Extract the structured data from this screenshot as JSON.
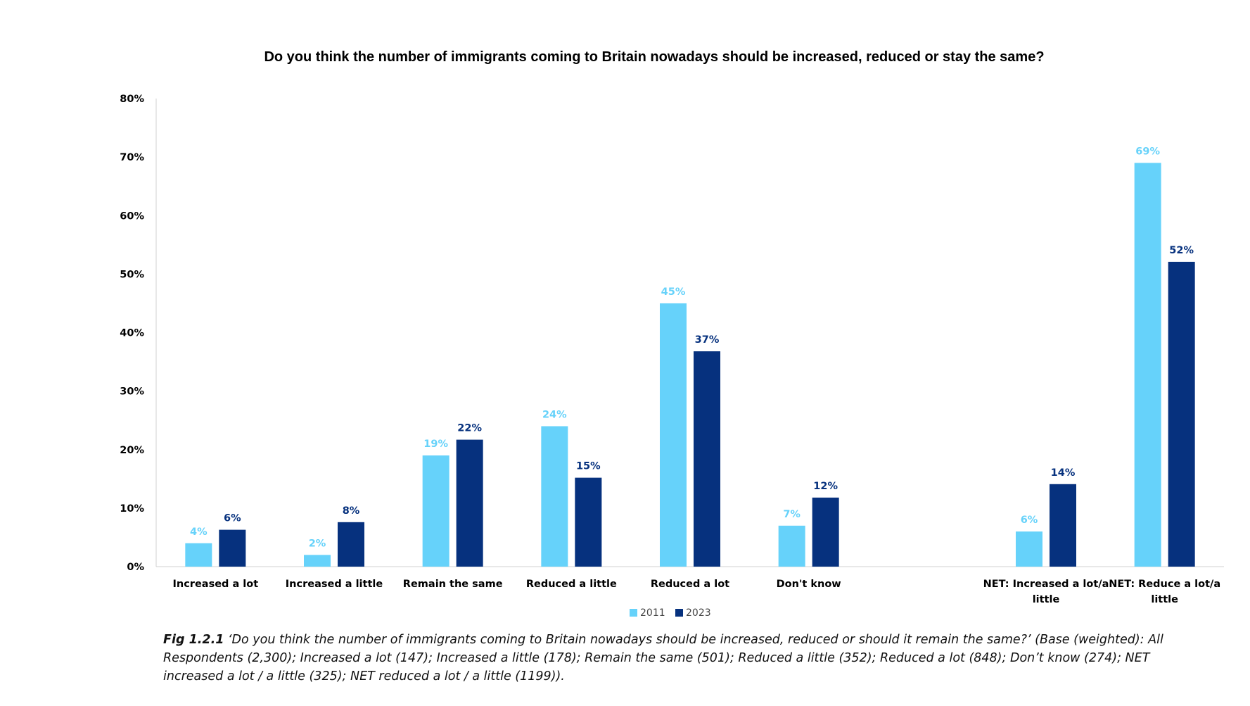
{
  "chart_data": {
    "type": "bar",
    "title": "Do you think the number of immigrants coming to Britain nowadays should be increased, reduced or stay the same?",
    "categories": [
      "Increased a lot",
      "Increased a little",
      "Remain the same",
      "Reduced a little",
      "Reduced a lot",
      "Don't know",
      "",
      "NET: Increased a lot/a little",
      "NET: Reduce a lot/a little"
    ],
    "series": [
      {
        "name": "2011",
        "color": "#66D2FA",
        "values": [
          4,
          2,
          19,
          24,
          45,
          7,
          null,
          6,
          69
        ],
        "labels": [
          "4%",
          "2%",
          "19%",
          "24%",
          "45%",
          "7%",
          "",
          "6%",
          "69%"
        ]
      },
      {
        "name": "2023",
        "color": "#06317E",
        "values": [
          6.3,
          7.6,
          21.7,
          15.2,
          36.8,
          11.8,
          null,
          14.1,
          52.1
        ],
        "labels": [
          "6%",
          "8%",
          "22%",
          "15%",
          "37%",
          "12%",
          "",
          "14%",
          "52%"
        ]
      }
    ],
    "ylim": [
      0,
      80
    ],
    "yticks": [
      "0%",
      "10%",
      "20%",
      "30%",
      "40%",
      "50%",
      "60%",
      "70%",
      "80%"
    ],
    "grid": false,
    "legend": "bottom-center"
  },
  "caption": {
    "fig_label": "Fig 1.2.1",
    "text": " ‘Do you think the number of immigrants coming to Britain nowadays should be increased, reduced or should it remain the same?’ (Base (weighted): All Respondents (2,300); Increased a lot (147); Increased a little (178); Remain the same (501); Reduced a little (352); Reduced a lot (848); Don’t know (274); NET increased a lot / a little (325); NET reduced a lot / a little (1199))."
  }
}
